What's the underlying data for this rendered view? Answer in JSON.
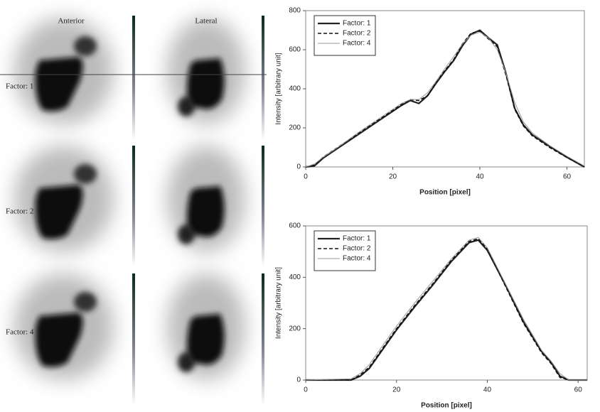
{
  "images": {
    "columns": [
      "Anterior",
      "Lateral"
    ],
    "rows": [
      "Factor: 1",
      "Factor: 2",
      "Factor: 4"
    ]
  },
  "chart_data": [
    {
      "type": "line",
      "xlabel": "Position [pixel]",
      "ylabel": "Intensity [arbitrary unit]",
      "xlim": [
        0,
        64
      ],
      "ylim": [
        0,
        800
      ],
      "xticks": [
        0,
        20,
        40,
        60
      ],
      "yticks": [
        0,
        200,
        400,
        600,
        800
      ],
      "legend": "upper left",
      "x": [
        0,
        2,
        4,
        8,
        12,
        16,
        20,
        22,
        24,
        26,
        28,
        30,
        32,
        34,
        36,
        38,
        40,
        42,
        44,
        46,
        48,
        50,
        52,
        56,
        60,
        64
      ],
      "series": [
        {
          "name": "Factor: 1",
          "color": "#222222",
          "style": "bold",
          "values": [
            0,
            5,
            45,
            105,
            165,
            225,
            285,
            315,
            340,
            325,
            365,
            430,
            490,
            545,
            620,
            680,
            700,
            660,
            625,
            480,
            300,
            215,
            165,
            105,
            50,
            0
          ]
        },
        {
          "name": "Factor: 2",
          "color": "#111111",
          "style": "dashed",
          "values": [
            0,
            10,
            50,
            110,
            170,
            230,
            290,
            320,
            345,
            340,
            365,
            435,
            495,
            550,
            630,
            685,
            695,
            655,
            615,
            470,
            295,
            210,
            160,
            100,
            48,
            0
          ]
        },
        {
          "name": "Factor: 4",
          "color": "#999999",
          "style": "thin",
          "values": [
            0,
            15,
            50,
            110,
            175,
            235,
            295,
            325,
            345,
            345,
            380,
            440,
            505,
            565,
            630,
            675,
            690,
            660,
            600,
            480,
            330,
            230,
            175,
            110,
            55,
            5
          ]
        }
      ]
    },
    {
      "type": "line",
      "xlabel": "Position [pixel]",
      "ylabel": "Intensity [arbitrary unit]",
      "xlim": [
        0,
        62
      ],
      "ylim": [
        0,
        600
      ],
      "xticks": [
        0,
        20,
        40,
        60
      ],
      "yticks": [
        0,
        200,
        400,
        600
      ],
      "legend": "upper left",
      "x": [
        0,
        10,
        12,
        14,
        16,
        20,
        24,
        28,
        32,
        36,
        38,
        40,
        44,
        48,
        52,
        54,
        56,
        58,
        62
      ],
      "series": [
        {
          "name": "Factor: 1",
          "color": "#222222",
          "style": "bold",
          "values": [
            0,
            0,
            15,
            45,
            95,
            195,
            285,
            370,
            460,
            535,
            545,
            505,
            370,
            225,
            110,
            70,
            15,
            0,
            0
          ]
        },
        {
          "name": "Factor: 2",
          "color": "#111111",
          "style": "dashed",
          "values": [
            0,
            0,
            20,
            50,
            100,
            200,
            290,
            375,
            465,
            540,
            550,
            510,
            365,
            220,
            105,
            65,
            10,
            0,
            0
          ]
        },
        {
          "name": "Factor: 4",
          "color": "#999999",
          "style": "thin",
          "values": [
            0,
            5,
            25,
            60,
            110,
            210,
            300,
            385,
            470,
            545,
            555,
            515,
            375,
            235,
            115,
            75,
            25,
            0,
            0
          ]
        }
      ]
    }
  ]
}
